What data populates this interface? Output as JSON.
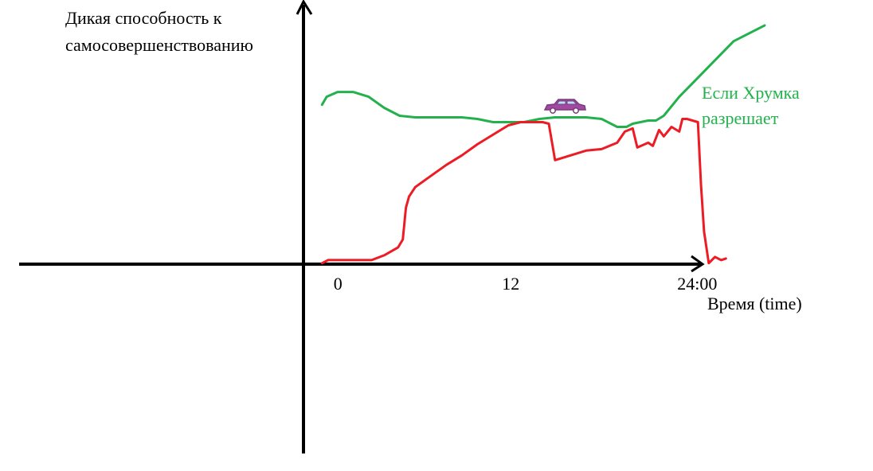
{
  "chart_data": {
    "type": "line",
    "ylabel_lines": [
      "Дикая способность к",
      "самосовершенствованию"
    ],
    "xlabel": "Время (time)",
    "x_ticks": [
      {
        "label": "0",
        "value": 0
      },
      {
        "label": "12",
        "value": 12
      },
      {
        "label": "24:00",
        "value": 24
      }
    ],
    "xlim": [
      -19.5,
      24.5
    ],
    "ylim": [
      -12,
      16.3
    ],
    "series": [
      {
        "key": "green",
        "color": "#22b14c",
        "label_lines": [
          "Если Хрумка",
          "разрешает"
        ],
        "x": [
          0,
          0.3,
          1,
          2,
          3,
          4,
          5,
          6,
          7,
          8,
          9,
          10,
          11,
          12,
          13,
          14,
          15,
          16,
          17,
          18,
          19,
          19.6,
          20,
          21,
          21.5,
          22,
          23,
          24,
          25,
          26.5,
          28.5
        ],
        "y": [
          10,
          10.5,
          10.8,
          10.8,
          10.5,
          9.8,
          9.3,
          9.2,
          9.2,
          9.2,
          9.2,
          9.1,
          8.9,
          8.9,
          8.9,
          9.1,
          9.2,
          9.2,
          9.2,
          9.1,
          8.6,
          8.6,
          8.8,
          9.0,
          9.0,
          9.3,
          10.5,
          11.5,
          12.5,
          14.0,
          15.0
        ]
      },
      {
        "key": "red",
        "color": "#ed1c24",
        "x": [
          0,
          0.4,
          1,
          2,
          3,
          3.2,
          4,
          4.9,
          5.2,
          5.4,
          5.6,
          5.8,
          6,
          7,
          8,
          9,
          10,
          11,
          12,
          12.8,
          13.5,
          14.2,
          14.6,
          15,
          16,
          17,
          18,
          19,
          19.5,
          20,
          20.3,
          21,
          21.3,
          21.7,
          22,
          22.5,
          23,
          23.2,
          23.5,
          24.2,
          24.4,
          24.6,
          24.9,
          25.3,
          25.7,
          26
        ],
        "y": [
          0,
          0.2,
          0.2,
          0.2,
          0.2,
          0.2,
          0.5,
          1.0,
          1.5,
          3.5,
          4.2,
          4.5,
          4.8,
          5.5,
          6.2,
          6.8,
          7.5,
          8.1,
          8.7,
          8.9,
          8.9,
          8.9,
          8.8,
          6.5,
          6.8,
          7.1,
          7.2,
          7.6,
          8.3,
          8.5,
          7.3,
          7.6,
          7.4,
          8.4,
          8.0,
          8.6,
          8.3,
          9.1,
          9.1,
          8.9,
          5.0,
          2.0,
          0.0,
          0.4,
          0.2,
          0.3
        ]
      }
    ],
    "car_icon": "car-icon",
    "car_color": "#a349a4"
  }
}
